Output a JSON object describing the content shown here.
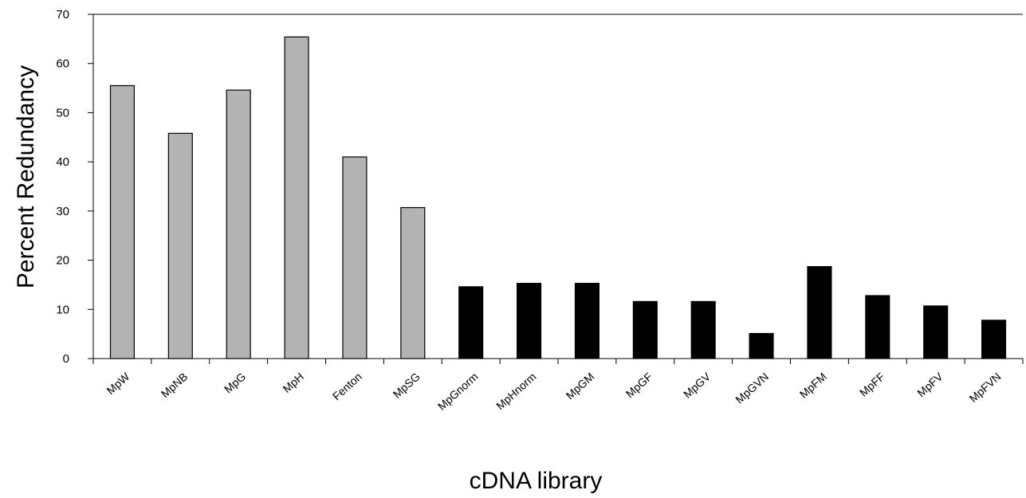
{
  "chart_data": {
    "type": "bar",
    "title": "",
    "xlabel": "cDNA library",
    "ylabel": "Percent Redundancy",
    "ylim": [
      0,
      70
    ],
    "yticks": [
      0,
      10,
      20,
      30,
      40,
      50,
      60,
      70
    ],
    "categories": [
      "MpW",
      "MpNB",
      "MpG",
      "MpH",
      "Fenton",
      "MpSG",
      "MpGnorm",
      "MpHnorm",
      "MpGM",
      "MpGF",
      "MpGV",
      "MpGVN",
      "MpFM",
      "MpFF",
      "MpFV",
      "MpFVN"
    ],
    "values": [
      55.5,
      45.8,
      54.6,
      65.4,
      41.0,
      30.7,
      14.6,
      15.3,
      15.3,
      11.6,
      11.6,
      5.1,
      18.7,
      12.8,
      10.7,
      7.8
    ],
    "bar_colors": [
      "#b3b3b3",
      "#b3b3b3",
      "#b3b3b3",
      "#b3b3b3",
      "#b3b3b3",
      "#b3b3b3",
      "#000000",
      "#000000",
      "#000000",
      "#000000",
      "#000000",
      "#000000",
      "#000000",
      "#000000",
      "#000000",
      "#000000"
    ],
    "grid": false,
    "legend": "none"
  }
}
